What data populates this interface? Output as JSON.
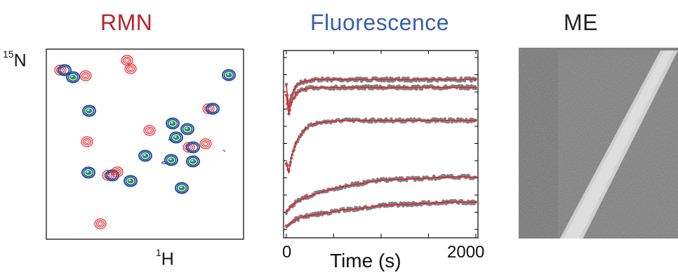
{
  "panels": {
    "nmr": {
      "title": "RMN",
      "title_color": "#b5242f",
      "y_axis_label": "N",
      "y_axis_label_sup": "15",
      "x_axis_label": "H",
      "x_axis_label_sup": "1",
      "contour_colors": [
        "#e8242c",
        "#234f9a",
        "#1f9a4a"
      ]
    },
    "fluorescence": {
      "title": "Fluorescence",
      "title_color": "#3a5ea8",
      "x_tick_start": "0",
      "x_tick_end": "2000",
      "x_axis_label": "Time (s)",
      "data_color": "#808080",
      "fit_color": "#e0242c"
    },
    "em": {
      "title": "ME",
      "title_color": "#222222"
    }
  },
  "chart_data": {
    "type": "scatter",
    "title": "Fluorescence",
    "xlabel": "Time (s)",
    "ylabel": "",
    "xlim": [
      0,
      2000
    ],
    "x_ticks_labeled": [
      0,
      2000
    ],
    "series": [
      {
        "x": [
          0,
          25,
          50,
          100,
          150,
          200,
          300,
          500,
          1000,
          1500,
          2000
        ],
        "y": [
          0.9,
          0.76,
          0.83,
          0.9,
          0.92,
          0.93,
          0.94,
          0.94,
          0.94,
          0.94,
          0.94
        ]
      },
      {
        "x": [
          0,
          25,
          50,
          100,
          150,
          200,
          300,
          500,
          1000,
          1500,
          2000
        ],
        "y": [
          0.84,
          0.72,
          0.79,
          0.85,
          0.87,
          0.88,
          0.89,
          0.89,
          0.89,
          0.89,
          0.89
        ]
      },
      {
        "x": [
          0,
          25,
          50,
          100,
          200,
          300,
          400,
          600,
          1000,
          1500,
          2000
        ],
        "y": [
          0.41,
          0.35,
          0.44,
          0.54,
          0.63,
          0.66,
          0.67,
          0.68,
          0.68,
          0.68,
          0.68
        ]
      },
      {
        "x": [
          0,
          50,
          100,
          200,
          400,
          600,
          800,
          1000,
          1400,
          1700,
          2000
        ],
        "y": [
          0.1,
          0.13,
          0.16,
          0.19,
          0.23,
          0.26,
          0.28,
          0.3,
          0.31,
          0.32,
          0.32
        ]
      },
      {
        "x": [
          0,
          50,
          100,
          200,
          400,
          600,
          800,
          1000,
          1400,
          1700,
          2000
        ],
        "y": [
          0.0,
          0.03,
          0.05,
          0.07,
          0.09,
          0.11,
          0.12,
          0.14,
          0.15,
          0.16,
          0.16
        ]
      }
    ]
  }
}
